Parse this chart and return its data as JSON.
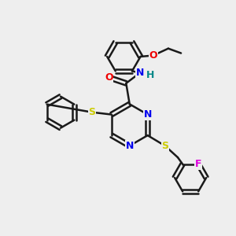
{
  "bg_color": "#eeeeee",
  "bond_color": "#1a1a1a",
  "bond_width": 1.8,
  "atom_colors": {
    "N": "#0000ee",
    "O": "#ee0000",
    "S": "#cccc00",
    "F": "#dd00dd",
    "H": "#008888",
    "C": "#1a1a1a"
  },
  "font_size": 9
}
